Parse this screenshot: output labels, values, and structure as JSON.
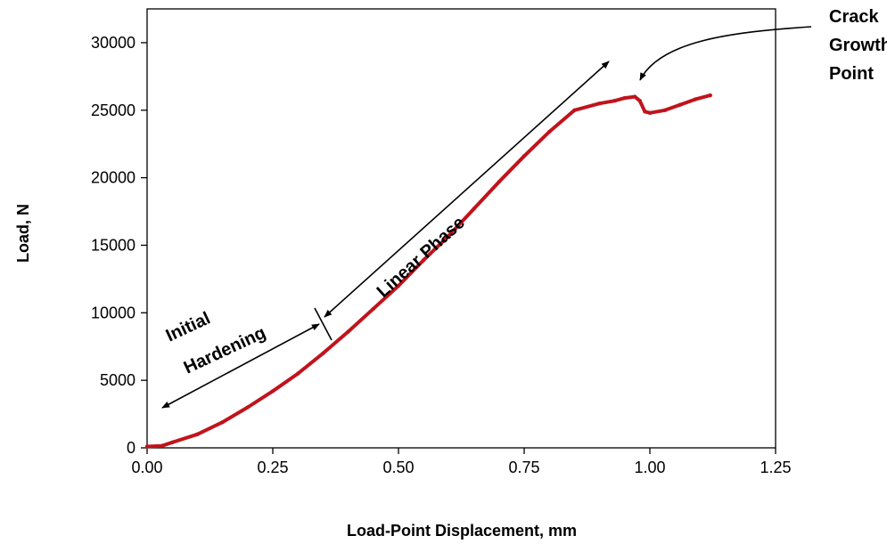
{
  "chart_data": {
    "type": "line",
    "title": "",
    "xlabel": "Load-Point Displacement, mm",
    "ylabel": "Load, N",
    "xlim": [
      0,
      1.25
    ],
    "ylim": [
      0,
      32500
    ],
    "xticks": [
      "0.00",
      "0.25",
      "0.50",
      "0.75",
      "1.00",
      "1.25"
    ],
    "yticks": [
      "0",
      "5000",
      "10000",
      "15000",
      "20000",
      "25000",
      "30000"
    ],
    "grid": false,
    "legend": "none",
    "series_color": "#c0141c",
    "series": [
      {
        "x": [
          0.0,
          0.03,
          0.05,
          0.1,
          0.15,
          0.2,
          0.25,
          0.3,
          0.35,
          0.4,
          0.45,
          0.5,
          0.55,
          0.6,
          0.65,
          0.7,
          0.75,
          0.8,
          0.85,
          0.9,
          0.93,
          0.95,
          0.97,
          0.98,
          0.99,
          1.0,
          1.03,
          1.06,
          1.09,
          1.12
        ],
        "y": [
          100,
          150,
          400,
          1000,
          1900,
          3000,
          4200,
          5500,
          7000,
          8600,
          10300,
          12000,
          13900,
          15700,
          17700,
          19700,
          21600,
          23400,
          25000,
          25500,
          25700,
          25900,
          26000,
          25700,
          24900,
          24800,
          25000,
          25400,
          25800,
          26100
        ]
      }
    ],
    "annotations": {
      "initial": "Initial",
      "hardening": "Hardening",
      "linear_phase": "Linear Phase",
      "crack_line1": "Crack",
      "crack_line2": "Growth",
      "crack_line3": "Point"
    }
  }
}
